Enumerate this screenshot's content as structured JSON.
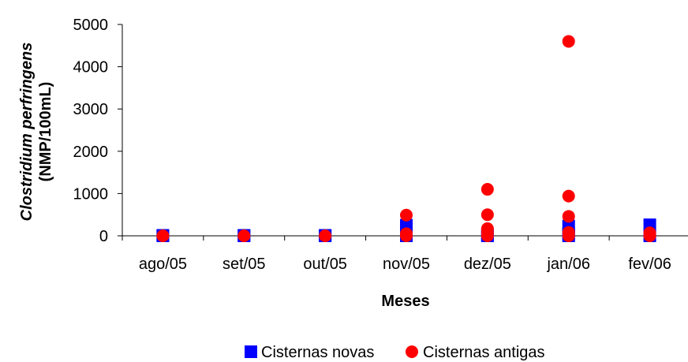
{
  "chart_data": {
    "type": "scatter",
    "title": "",
    "xlabel": "Meses",
    "ylabel_line1": "Clostridium perfringens",
    "ylabel_line2": "(NMP/100mL)",
    "categories": [
      "ago/05",
      "set/05",
      "out/05",
      "nov/05",
      "dez/05",
      "jan/06",
      "fev/06"
    ],
    "ylim": [
      0,
      5000
    ],
    "yticks": [
      0,
      1000,
      2000,
      3000,
      4000,
      5000
    ],
    "ytick_labels": [
      "0",
      "1000",
      "2000",
      "3000",
      "4000",
      "5000"
    ],
    "grid": false,
    "legend_position": "bottom",
    "series": [
      {
        "name": "Cisternas novas",
        "marker": "square",
        "color": "#0000ff",
        "points": [
          {
            "x": "ago/05",
            "y": 0
          },
          {
            "x": "ago/05",
            "y": 10
          },
          {
            "x": "set/05",
            "y": 0
          },
          {
            "x": "set/05",
            "y": 10
          },
          {
            "x": "out/05",
            "y": 0
          },
          {
            "x": "out/05",
            "y": 10
          },
          {
            "x": "nov/05",
            "y": 0
          },
          {
            "x": "nov/05",
            "y": 50
          },
          {
            "x": "nov/05",
            "y": 250
          },
          {
            "x": "dez/05",
            "y": 0
          },
          {
            "x": "dez/05",
            "y": 20
          },
          {
            "x": "jan/06",
            "y": 0
          },
          {
            "x": "jan/06",
            "y": 50
          },
          {
            "x": "jan/06",
            "y": 230
          },
          {
            "x": "fev/06",
            "y": 0
          },
          {
            "x": "fev/06",
            "y": 260
          }
        ]
      },
      {
        "name": "Cisternas antigas",
        "marker": "circle",
        "color": "#ff0000",
        "points": [
          {
            "x": "ago/05",
            "y": 0
          },
          {
            "x": "set/05",
            "y": 0
          },
          {
            "x": "out/05",
            "y": 0
          },
          {
            "x": "nov/05",
            "y": 0
          },
          {
            "x": "nov/05",
            "y": 50
          },
          {
            "x": "nov/05",
            "y": 490
          },
          {
            "x": "dez/05",
            "y": 0
          },
          {
            "x": "dez/05",
            "y": 80
          },
          {
            "x": "dez/05",
            "y": 170
          },
          {
            "x": "dez/05",
            "y": 500
          },
          {
            "x": "dez/05",
            "y": 1100
          },
          {
            "x": "jan/06",
            "y": 0
          },
          {
            "x": "jan/06",
            "y": 80
          },
          {
            "x": "jan/06",
            "y": 460
          },
          {
            "x": "jan/06",
            "y": 940
          },
          {
            "x": "jan/06",
            "y": 4600
          },
          {
            "x": "fev/06",
            "y": 0
          },
          {
            "x": "fev/06",
            "y": 70
          }
        ]
      }
    ]
  }
}
